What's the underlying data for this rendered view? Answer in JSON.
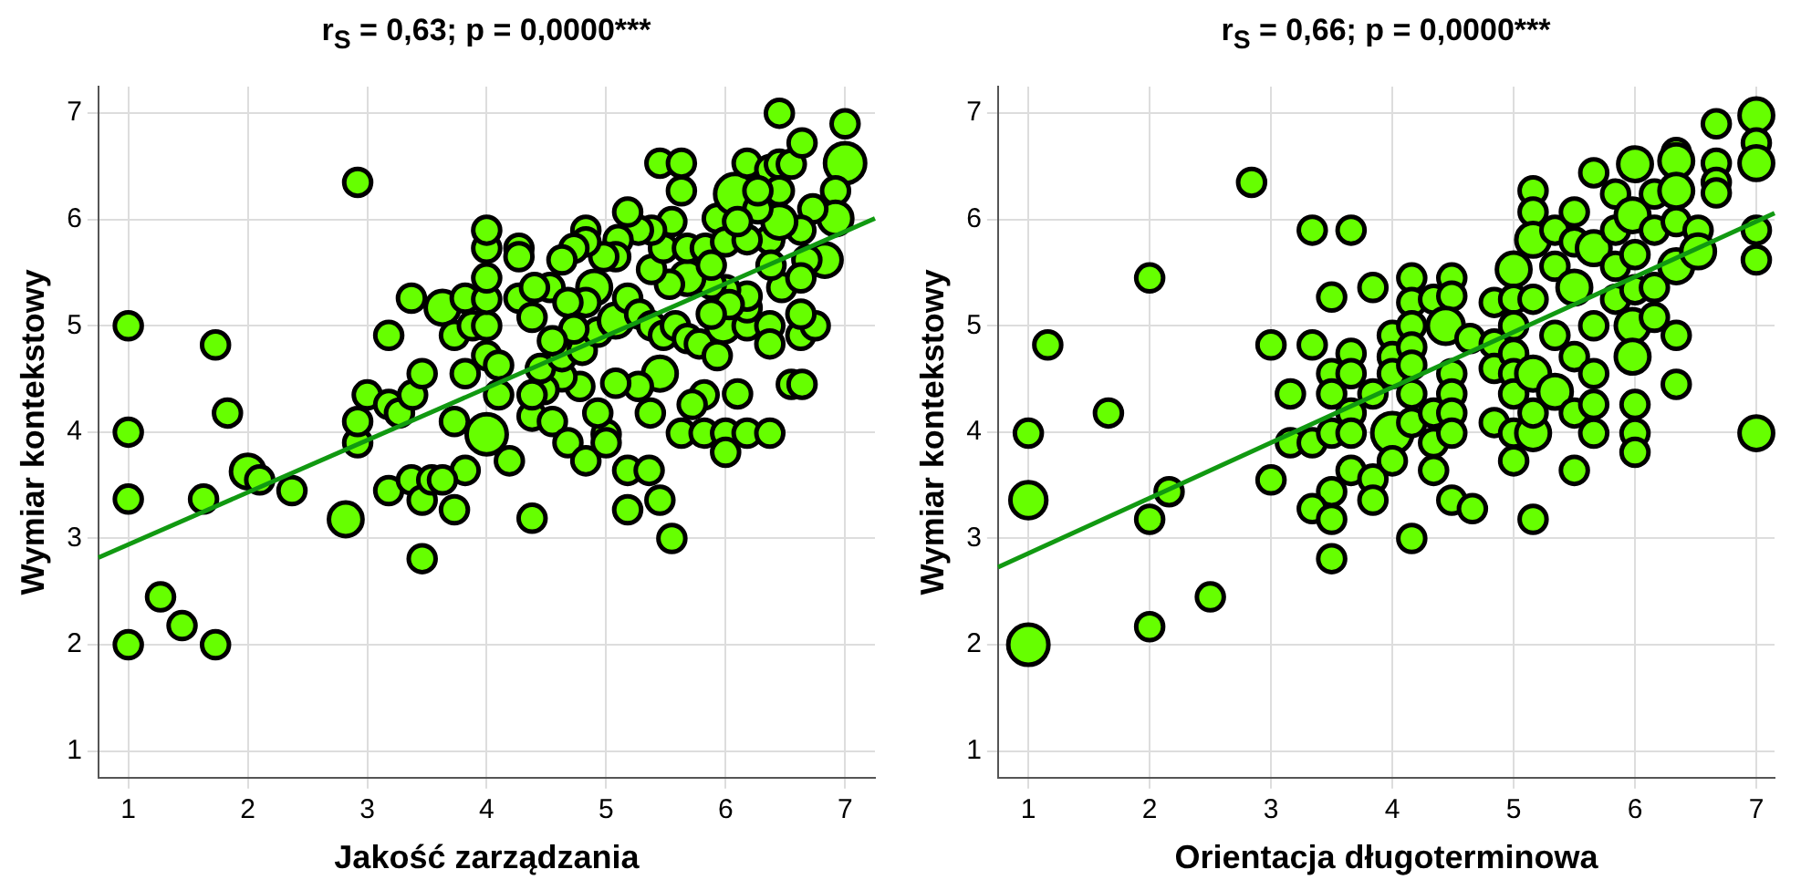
{
  "chart_data": [
    {
      "type": "bubble",
      "title": "r$_{S}$ = 0,63; p = 0,0000***",
      "xlabel": "Jakość zarządzania",
      "ylabel": "Wymiar kontekstowy",
      "xlim": [
        0.75,
        7.25
      ],
      "ylim": [
        0.75,
        7.25
      ],
      "xticks": [
        1,
        2,
        3,
        4,
        5,
        6,
        7
      ],
      "yticks": [
        1,
        2,
        3,
        4,
        5,
        6,
        7
      ],
      "grid": true,
      "series": [
        {
          "type": "bubble",
          "color": "#66ff00",
          "x": [
            1,
            1,
            1,
            1,
            1.27,
            1.45,
            1.73,
            1.73,
            1.83,
            2,
            2.1,
            2.37,
            1.63,
            2.82,
            2.92,
            3.18,
            3.0,
            3.18,
            3.27,
            3.38,
            3.46,
            3.37,
            3.63,
            3.82,
            3.73,
            3.88,
            4.0,
            4.0,
            4.0,
            4.0,
            4.0,
            4.27,
            4.27,
            4.27,
            4.38,
            4.53,
            4.4,
            3.73,
            3.82,
            4.0,
            4.1,
            4.1,
            4.0,
            3.82,
            4.19,
            3.18,
            3.37,
            3.46,
            3.54,
            3.63,
            3.73,
            3.46,
            2.92,
            2.92,
            4.38,
            4.38,
            4.55,
            4.68,
            4.83,
            5.0,
            5.0,
            5.18,
            5.36,
            5.18,
            5.45,
            5.55,
            5.63,
            5.82,
            6.0,
            6.0,
            6.18,
            6.37,
            6.55,
            6.64,
            6.1,
            5.82,
            5.72,
            5.37,
            5.45,
            5.27,
            5.08,
            4.93,
            4.78,
            4.63,
            4.48,
            4.38,
            4.45,
            4.63,
            4.8,
            4.93,
            5.08,
            4.9,
            4.83,
            4.68,
            4.73,
            4.55,
            5.18,
            5.28,
            5.38,
            5.48,
            5.58,
            5.68,
            5.78,
            5.93,
            5.98,
            6.18,
            6.37,
            6.37,
            6.63,
            6.75,
            6.63,
            6.18,
            6.18,
            6.0,
            5.88,
            5.68,
            5.53,
            5.38,
            5.48,
            5.55,
            5.38,
            5.27,
            5.18,
            5.1,
            5.08,
            4.98,
            4.83,
            4.83,
            4.73,
            4.63,
            5.45,
            5.63,
            5.63,
            5.68,
            5.83,
            5.93,
            6.0,
            6.08,
            6.18,
            6.37,
            6.45,
            6.55,
            6.64,
            6.45,
            7.0,
            7.0,
            6.92,
            6.92,
            6.73,
            6.63,
            6.83,
            6.68,
            6.47,
            6.63,
            6.37,
            6.18,
            6.45,
            6.27,
            6.45,
            6.27,
            6.1,
            6.38,
            5.88,
            6.03,
            5.88
          ],
          "values": [
            5,
            4,
            3.37,
            2,
            2.45,
            2.18,
            2,
            4.82,
            4.18,
            3.63,
            3.55,
            3.45,
            3.37,
            3.18,
            6.35,
            4.91,
            4.35,
            4.26,
            4.18,
            4.35,
            4.55,
            5.26,
            5.17,
            5.26,
            4.91,
            5.0,
            5.0,
            5.25,
            5.45,
            5.73,
            5.9,
            5.73,
            5.65,
            5.26,
            5.08,
            5.36,
            5.36,
            4.1,
            4.55,
            4.72,
            4.63,
            4.35,
            3.98,
            3.64,
            3.73,
            3.45,
            3.55,
            3.36,
            3.55,
            3.55,
            3.27,
            2.81,
            3.9,
            4.1,
            4.15,
            3.19,
            4.1,
            3.9,
            3.73,
            3.98,
            3.9,
            3.64,
            3.64,
            3.27,
            3.36,
            3.0,
            3.99,
            3.99,
            3.99,
            3.81,
            3.99,
            3.99,
            4.45,
            4.45,
            4.36,
            4.35,
            4.26,
            4.18,
            4.55,
            4.43,
            4.46,
            4.18,
            4.43,
            4.52,
            4.4,
            4.35,
            4.6,
            4.71,
            4.77,
            4.94,
            5.05,
            5.36,
            5.22,
            5.22,
            4.97,
            4.86,
            5.26,
            5.11,
            5.0,
            4.91,
            5.0,
            4.88,
            4.83,
            4.72,
            5.0,
            5.0,
            5.0,
            4.83,
            4.91,
            5.0,
            5.11,
            5.17,
            5.28,
            5.34,
            5.39,
            5.45,
            5.39,
            5.53,
            5.73,
            5.98,
            5.9,
            5.9,
            6.07,
            5.81,
            5.65,
            5.65,
            5.9,
            5.79,
            5.73,
            5.62,
            6.53,
            6.53,
            6.27,
            5.73,
            5.73,
            6.01,
            5.79,
            6.24,
            6.53,
            6.47,
            6.52,
            6.52,
            6.72,
            7.0,
            6.9,
            6.53,
            6.27,
            6.01,
            6.1,
            5.9,
            5.62,
            5.62,
            5.36,
            5.45,
            5.81,
            5.81,
            5.98,
            6.1,
            6.27,
            6.27,
            5.98,
            5.57,
            5.57,
            5.2,
            5.11
          ],
          "sizes": [
            0.45,
            0.45,
            0.45,
            0.45,
            0.45,
            0.45,
            0.45,
            0.45,
            0.45,
            0.7,
            0.45,
            0.45,
            0.45,
            0.7,
            0.45,
            0.45,
            0.45,
            0.45,
            0.45,
            0.45,
            0.45,
            0.45,
            0.7,
            0.45,
            0.45,
            0.45,
            0.45,
            0.45,
            0.45,
            0.45,
            0.45,
            0.45,
            0.45,
            0.45,
            0.45,
            0.45,
            0.45,
            0.45,
            0.45,
            0.45,
            0.45,
            0.45,
            1,
            0.45,
            0.45,
            0.45,
            0.45,
            0.45,
            0.45,
            0.45,
            0.45,
            0.45,
            0.45,
            0.45,
            0.45,
            0.45,
            0.45,
            0.45,
            0.45,
            0.45,
            0.45,
            0.45,
            0.45,
            0.45,
            0.45,
            0.45,
            0.45,
            0.45,
            0.45,
            0.45,
            0.45,
            0.45,
            0.45,
            0.45,
            0.45,
            0.45,
            0.45,
            0.45,
            0.7,
            0.45,
            0.45,
            0.45,
            0.45,
            0.45,
            0.45,
            0.45,
            0.45,
            0.45,
            0.45,
            0.45,
            0.7,
            0.7,
            0.45,
            0.45,
            0.45,
            0.45,
            0.45,
            0.45,
            0.45,
            0.45,
            0.45,
            0.45,
            0.45,
            0.45,
            0.7,
            0.45,
            0.45,
            0.45,
            0.45,
            0.45,
            0.45,
            0.45,
            0.45,
            0.45,
            0.45,
            0.7,
            0.45,
            0.45,
            0.45,
            0.45,
            0.45,
            0.45,
            0.45,
            0.45,
            0.45,
            0.45,
            0.45,
            0.45,
            0.45,
            0.45,
            0.45,
            0.45,
            0.45,
            0.45,
            0.45,
            0.45,
            0.45,
            1,
            0.45,
            0.45,
            0.45,
            0.45,
            0.45,
            0.45,
            0.45,
            1,
            0.45,
            0.7,
            0.45,
            0.45,
            0.7,
            0.45,
            0.45,
            0.45,
            0.45,
            0.45,
            0.7,
            0.45,
            0.45,
            0.45,
            0.45,
            0.45,
            0.45,
            0.45,
            0.45
          ]
        },
        {
          "type": "line",
          "color": "#119911",
          "x": [
            0.75,
            7.25
          ],
          "values": [
            2.82,
            6.01
          ]
        }
      ]
    },
    {
      "type": "bubble",
      "title": "r$_{S}$ = 0,66; p = 0,0000***",
      "xlabel": "Orientacja długoterminowa",
      "ylabel": "Wymiar kontekstowy",
      "xlim": [
        0.75,
        7.15
      ],
      "ylim": [
        0.75,
        7.25
      ],
      "xticks": [
        1,
        2,
        3,
        4,
        5,
        6,
        7
      ],
      "yticks": [
        1,
        2,
        3,
        4,
        5,
        6,
        7
      ],
      "grid": true,
      "series": [
        {
          "type": "bubble",
          "color": "#66ff00",
          "x": [
            1,
            1.16,
            1,
            1,
            1.66,
            2.0,
            2.0,
            2.0,
            2.16,
            2.5,
            2.84,
            3.0,
            3.0,
            3.16,
            3.16,
            3.34,
            3.66,
            3.34,
            3.34,
            3.5,
            3.84,
            3.5,
            3.5,
            3.5,
            3.66,
            3.66,
            3.66,
            3.66,
            3.66,
            3.84,
            3.84,
            3.5,
            3.34,
            3.5,
            3.5,
            3.84,
            4.0,
            4.0,
            4.0,
            4.0,
            4.0,
            4.16,
            4.16,
            4.16,
            4.16,
            4.16,
            4.16,
            4.16,
            4.16,
            4.34,
            4.34,
            4.34,
            4.34,
            4.49,
            4.49,
            4.44,
            4.49,
            4.49,
            4.49,
            4.49,
            4.49,
            4.66,
            4.64,
            4.84,
            4.84,
            4.84,
            4.84,
            5.0,
            5.0,
            5.0,
            5.0,
            5.0,
            5.0,
            5.0,
            5.0,
            5.16,
            5.16,
            5.16,
            5.16,
            5.16,
            5.16,
            5.16,
            5.16,
            5.34,
            5.34,
            5.34,
            5.34,
            5.5,
            5.5,
            5.5,
            5.5,
            5.5,
            5.5,
            5.66,
            5.66,
            5.66,
            5.66,
            5.66,
            5.66,
            5.84,
            5.84,
            5.84,
            5.84,
            6.0,
            5.98,
            6.0,
            6.0,
            5.98,
            5.98,
            6.0,
            6.0,
            6.0,
            6.16,
            6.16,
            6.16,
            6.16,
            6.34,
            6.34,
            6.34,
            6.34,
            6.34,
            6.34,
            6.34,
            6.52,
            6.52,
            6.67,
            6.67,
            6.67,
            6.67,
            7.0,
            7.0,
            7.0,
            7.0,
            7.0,
            7.0
          ],
          "values": [
            3.99,
            4.82,
            3.36,
            2.0,
            4.18,
            5.45,
            3.18,
            2.17,
            3.44,
            2.45,
            6.35,
            4.82,
            3.55,
            4.36,
            3.9,
            5.9,
            5.9,
            4.82,
            3.9,
            5.27,
            5.36,
            4.55,
            4.36,
            3.99,
            4.74,
            4.55,
            4.18,
            3.99,
            3.64,
            3.56,
            3.36,
            3.44,
            3.28,
            3.18,
            2.81,
            4.36,
            3.99,
            3.73,
            4.91,
            4.71,
            4.55,
            5.45,
            5.22,
            5.0,
            4.8,
            4.63,
            4.36,
            4.09,
            3.0,
            5.25,
            4.18,
            3.9,
            3.64,
            5.45,
            5.28,
            5.0,
            4.55,
            4.36,
            4.18,
            3.99,
            3.36,
            3.28,
            4.88,
            5.22,
            4.83,
            4.6,
            4.09,
            5.53,
            5.25,
            5.0,
            4.74,
            4.55,
            4.36,
            3.99,
            3.73,
            6.27,
            6.07,
            5.81,
            5.25,
            4.55,
            3.99,
            4.18,
            3.18,
            5.9,
            5.56,
            4.91,
            4.38,
            6.07,
            5.79,
            5.36,
            4.71,
            4.18,
            3.64,
            6.44,
            5.73,
            5.0,
            4.55,
            4.26,
            3.99,
            6.24,
            5.9,
            5.56,
            5.25,
            6.52,
            6.04,
            5.67,
            5.34,
            5.0,
            4.71,
            4.26,
            3.99,
            3.81,
            6.24,
            5.9,
            5.36,
            5.08,
            6.63,
            6.55,
            6.27,
            5.98,
            5.56,
            4.91,
            4.45,
            5.9,
            5.7,
            6.9,
            6.53,
            6.35,
            6.25,
            6.98,
            6.72,
            6.53,
            5.9,
            5.62,
            3.99
          ],
          "sizes": [
            0.45,
            0.45,
            0.8,
            1,
            0.45,
            0.45,
            0.45,
            0.45,
            0.45,
            0.45,
            0.45,
            0.45,
            0.45,
            0.45,
            0.45,
            0.45,
            0.45,
            0.45,
            0.45,
            0.45,
            0.45,
            0.45,
            0.45,
            0.45,
            0.45,
            0.45,
            0.45,
            0.45,
            0.45,
            0.45,
            0.45,
            0.45,
            0.45,
            0.45,
            0.45,
            0.45,
            1,
            0.45,
            0.45,
            0.45,
            0.45,
            0.45,
            0.45,
            0.45,
            0.45,
            0.45,
            0.45,
            0.45,
            0.45,
            0.45,
            0.45,
            0.45,
            0.45,
            0.45,
            0.45,
            0.8,
            0.45,
            0.45,
            0.45,
            0.45,
            0.45,
            0.45,
            0.45,
            0.45,
            0.45,
            0.45,
            0.45,
            0.7,
            0.45,
            0.45,
            0.45,
            0.45,
            0.45,
            0.45,
            0.45,
            0.45,
            0.45,
            0.7,
            0.45,
            0.7,
            0.7,
            0.45,
            0.45,
            0.45,
            0.45,
            0.45,
            0.7,
            0.45,
            0.45,
            0.7,
            0.45,
            0.45,
            0.45,
            0.45,
            0.7,
            0.45,
            0.45,
            0.45,
            0.45,
            0.45,
            0.45,
            0.45,
            0.45,
            0.7,
            0.7,
            0.45,
            0.45,
            0.7,
            0.7,
            0.45,
            0.45,
            0.45,
            0.45,
            0.45,
            0.45,
            0.45,
            0.45,
            0.7,
            0.7,
            0.45,
            0.7,
            0.45,
            0.45,
            0.45,
            0.7,
            0.45,
            0.45,
            0.45,
            0.45,
            0.7,
            0.45,
            0.7,
            0.45,
            0.45,
            0.7
          ]
        },
        {
          "type": "line",
          "color": "#119911",
          "x": [
            0.75,
            7.15
          ],
          "values": [
            2.73,
            6.06
          ]
        }
      ]
    }
  ]
}
